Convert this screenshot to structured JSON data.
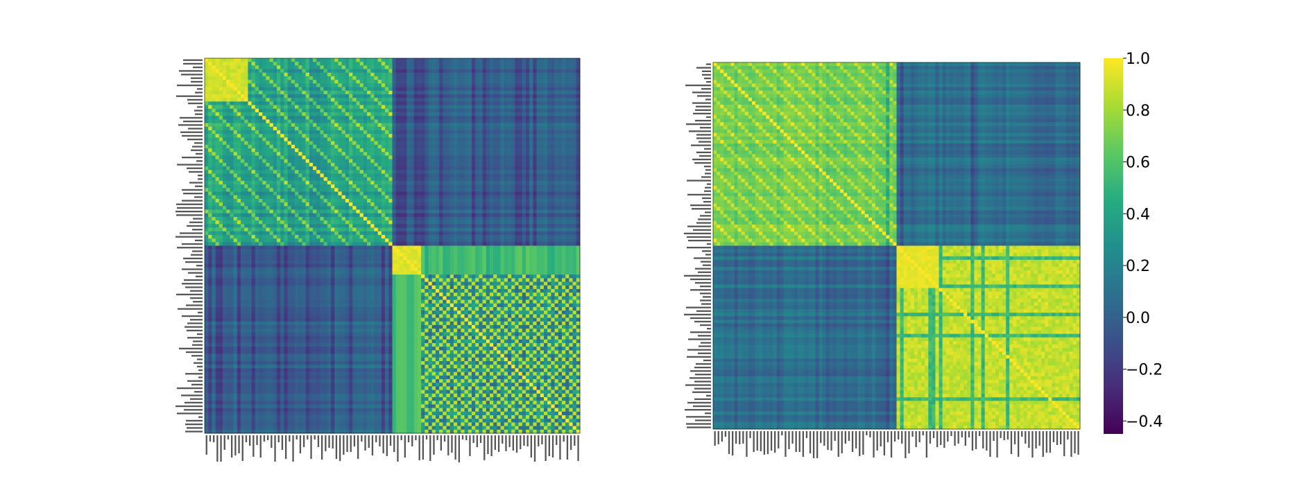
{
  "chart_data": [
    {
      "type": "heatmap",
      "description_pattern": "block structure: two diagonal blocks (high correlation) with low off-diagonal blocks; upper-left sub-block near 1.0, lower-right checkered pattern",
      "size": 104,
      "blocks": [
        52,
        52
      ],
      "colormap": "viridis",
      "vmin": -0.45,
      "vmax": 1.0,
      "axis_labels": "unreadable small tick labels on both axes"
    },
    {
      "type": "heatmap",
      "description_pattern": "two diagonal blocks, lower-right block strongly yellow (about 0.9), upper-left block moderate-high (about 0.7), off-diagonal blocks low (about 0.0–0.2)",
      "size": 104,
      "blocks": [
        52,
        52
      ],
      "colormap": "viridis",
      "vmin": -0.45,
      "vmax": 1.0,
      "axis_labels": "unreadable small tick labels on both axes"
    }
  ],
  "colorbar": {
    "ticks": [
      "1.0",
      "0.8",
      "0.6",
      "0.4",
      "0.2",
      "0.0",
      "−0.2",
      "−0.4"
    ],
    "tick_values": [
      1.0,
      0.8,
      0.6,
      0.4,
      0.2,
      0.0,
      -0.2,
      -0.4
    ],
    "vmin": -0.45,
    "vmax": 1.0
  }
}
